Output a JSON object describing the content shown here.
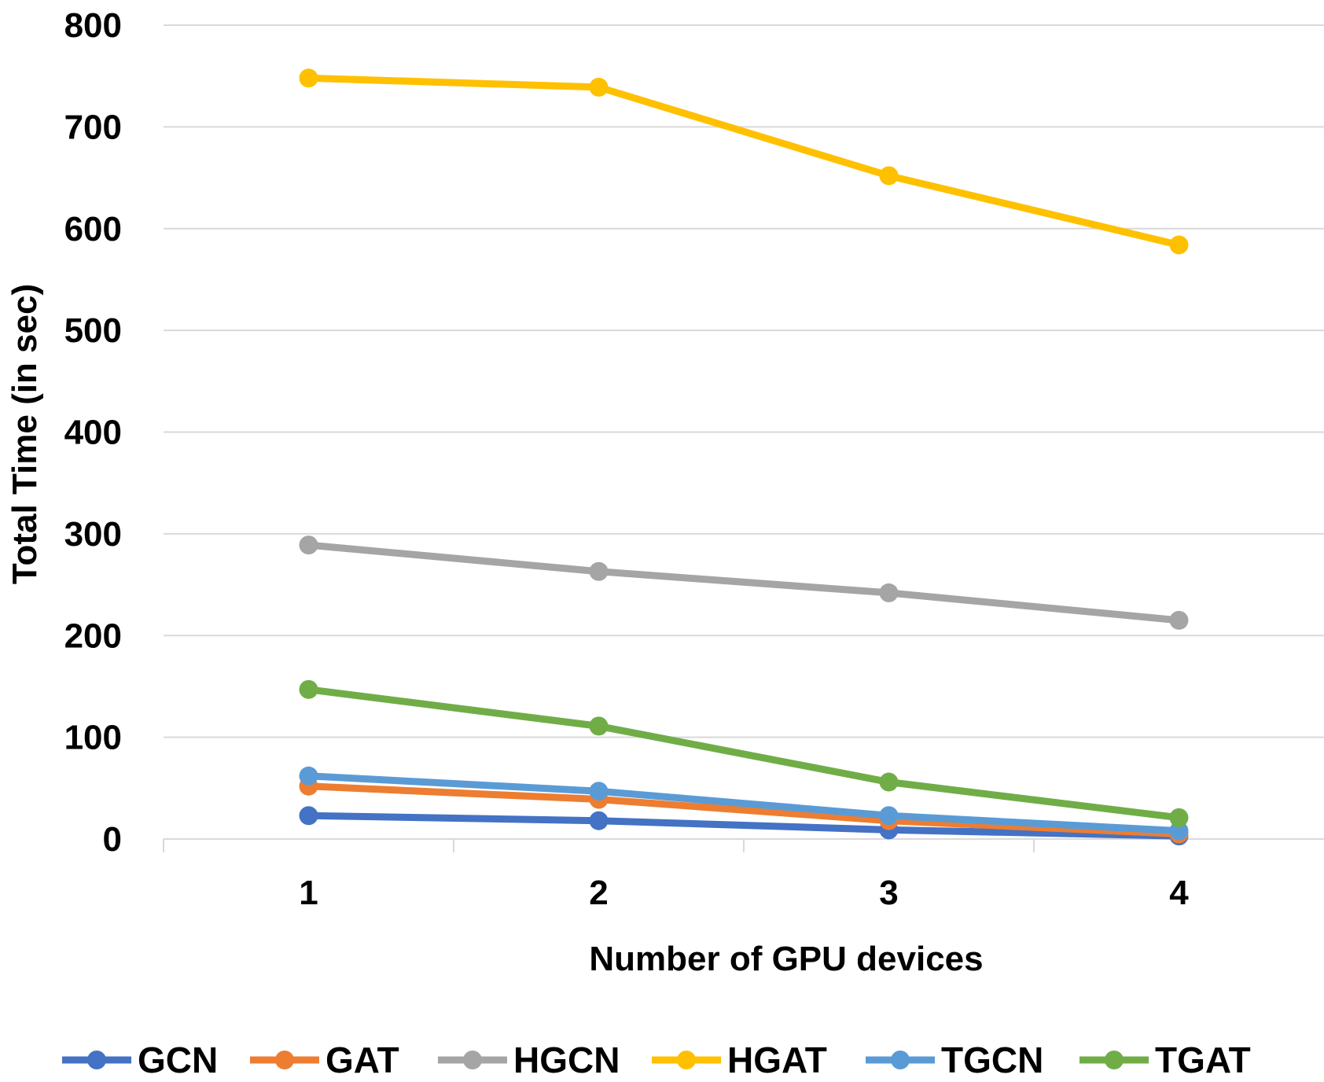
{
  "chart_data": {
    "type": "line",
    "title": "",
    "xlabel": "Number of GPU devices",
    "ylabel": "Total Time (in sec)",
    "categories": [
      "1",
      "2",
      "3",
      "4"
    ],
    "ylim": [
      0,
      800
    ],
    "yticks": [
      "0",
      "100",
      "200",
      "300",
      "400",
      "500",
      "600",
      "700",
      "800"
    ],
    "grid": true,
    "legend_position": "bottom",
    "series": [
      {
        "name": "GCN",
        "color": "#4472C4",
        "values": [
          23,
          18,
          9,
          3
        ]
      },
      {
        "name": "GAT",
        "color": "#ED7D31",
        "values": [
          52,
          39,
          18,
          5
        ]
      },
      {
        "name": "HGCN",
        "color": "#A5A5A5",
        "values": [
          289,
          263,
          242,
          215
        ]
      },
      {
        "name": "HGAT",
        "color": "#FFC000",
        "values": [
          748,
          739,
          652,
          584
        ]
      },
      {
        "name": "TGCN",
        "color": "#5B9BD5",
        "values": [
          62,
          47,
          23,
          8
        ]
      },
      {
        "name": "TGAT",
        "color": "#70AD47",
        "values": [
          147,
          111,
          56,
          21
        ]
      }
    ]
  }
}
